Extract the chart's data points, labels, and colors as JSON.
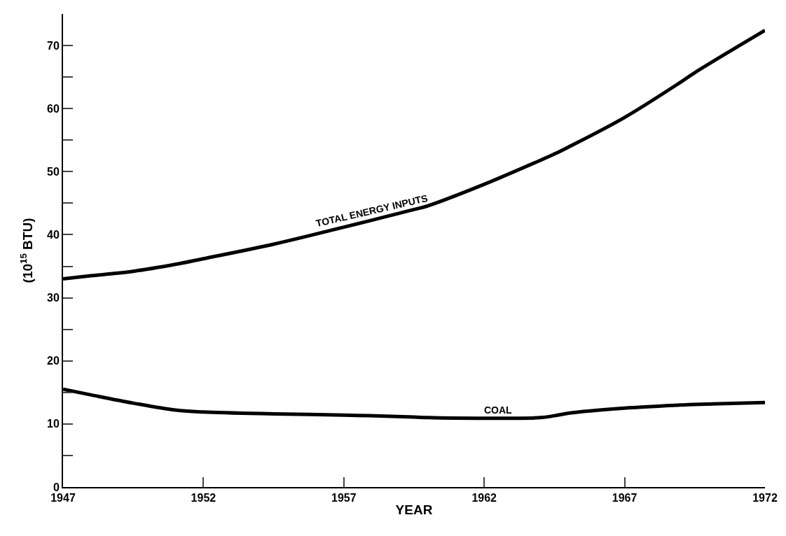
{
  "chart_data": {
    "type": "line",
    "xlabel": "YEAR",
    "ylabel": "(10$^{15}$ BTU)",
    "x": [
      1947,
      1948,
      1949.5,
      1951,
      1952,
      1954.5,
      1957,
      1959.5,
      1960,
      1962,
      1964,
      1964.5,
      1965,
      1967,
      1969,
      1969.5,
      1972
    ],
    "series": [
      {
        "name": "TOTAL ENERGY INPUTS",
        "color": "#000000",
        "values": [
          33.0,
          33.5,
          34.2,
          35.3,
          36.2,
          38.5,
          41.2,
          44.0,
          44.6,
          48.0,
          51.8,
          52.8,
          53.9,
          58.6,
          64.2,
          65.7,
          72.4
        ]
      },
      {
        "name": "COAL",
        "color": "#000000",
        "values": [
          15.5,
          14.6,
          13.3,
          12.2,
          11.9,
          11.6,
          11.4,
          11.1,
          11.0,
          10.9,
          11.0,
          11.3,
          11.7,
          12.5,
          13.0,
          13.1,
          13.4
        ]
      }
    ],
    "xlim": [
      1947,
      1972
    ],
    "xticks": [
      1947,
      1952,
      1957,
      1962,
      1967,
      1972
    ],
    "ylim": [
      0,
      75
    ],
    "yticks": [
      0,
      {
        "value": 5,
        "label": null
      },
      10,
      {
        "value": 15,
        "label": null
      },
      20,
      {
        "value": 25,
        "label": null
      },
      30,
      {
        "value": 35,
        "label": null
      },
      40,
      {
        "value": 45,
        "label": null
      },
      50,
      {
        "value": 55,
        "label": null
      },
      60,
      {
        "value": 65,
        "label": null
      },
      70
    ],
    "legend": false,
    "marker": "none",
    "line_style": "solid"
  }
}
